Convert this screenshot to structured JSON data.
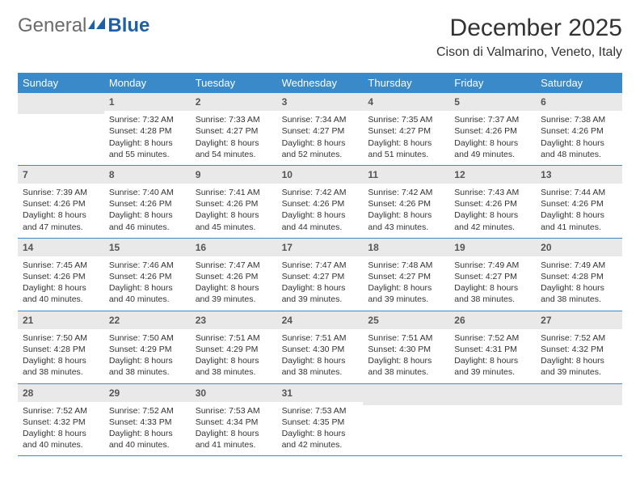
{
  "brand": {
    "general": "General",
    "blue": "Blue"
  },
  "title": "December 2025",
  "location": "Cison di Valmarino, Veneto, Italy",
  "colors": {
    "header_bg": "#3a8ac9",
    "header_fg": "#ffffff",
    "daynum_bg": "#e9e9e9",
    "week_border": "#3a8ac9",
    "logo_general": "#6b6b6b",
    "logo_blue": "#1f5fa8"
  },
  "fonts": {
    "body_pt": 10.5,
    "dayname_pt": 13,
    "title_pt": 30,
    "location_pt": 16
  },
  "daynames": [
    "Sunday",
    "Monday",
    "Tuesday",
    "Wednesday",
    "Thursday",
    "Friday",
    "Saturday"
  ],
  "weeks": [
    [
      {
        "n": "",
        "sunrise": "",
        "sunset": "",
        "daylight": ""
      },
      {
        "n": "1",
        "sunrise": "Sunrise: 7:32 AM",
        "sunset": "Sunset: 4:28 PM",
        "daylight": "Daylight: 8 hours and 55 minutes."
      },
      {
        "n": "2",
        "sunrise": "Sunrise: 7:33 AM",
        "sunset": "Sunset: 4:27 PM",
        "daylight": "Daylight: 8 hours and 54 minutes."
      },
      {
        "n": "3",
        "sunrise": "Sunrise: 7:34 AM",
        "sunset": "Sunset: 4:27 PM",
        "daylight": "Daylight: 8 hours and 52 minutes."
      },
      {
        "n": "4",
        "sunrise": "Sunrise: 7:35 AM",
        "sunset": "Sunset: 4:27 PM",
        "daylight": "Daylight: 8 hours and 51 minutes."
      },
      {
        "n": "5",
        "sunrise": "Sunrise: 7:37 AM",
        "sunset": "Sunset: 4:26 PM",
        "daylight": "Daylight: 8 hours and 49 minutes."
      },
      {
        "n": "6",
        "sunrise": "Sunrise: 7:38 AM",
        "sunset": "Sunset: 4:26 PM",
        "daylight": "Daylight: 8 hours and 48 minutes."
      }
    ],
    [
      {
        "n": "7",
        "sunrise": "Sunrise: 7:39 AM",
        "sunset": "Sunset: 4:26 PM",
        "daylight": "Daylight: 8 hours and 47 minutes."
      },
      {
        "n": "8",
        "sunrise": "Sunrise: 7:40 AM",
        "sunset": "Sunset: 4:26 PM",
        "daylight": "Daylight: 8 hours and 46 minutes."
      },
      {
        "n": "9",
        "sunrise": "Sunrise: 7:41 AM",
        "sunset": "Sunset: 4:26 PM",
        "daylight": "Daylight: 8 hours and 45 minutes."
      },
      {
        "n": "10",
        "sunrise": "Sunrise: 7:42 AM",
        "sunset": "Sunset: 4:26 PM",
        "daylight": "Daylight: 8 hours and 44 minutes."
      },
      {
        "n": "11",
        "sunrise": "Sunrise: 7:42 AM",
        "sunset": "Sunset: 4:26 PM",
        "daylight": "Daylight: 8 hours and 43 minutes."
      },
      {
        "n": "12",
        "sunrise": "Sunrise: 7:43 AM",
        "sunset": "Sunset: 4:26 PM",
        "daylight": "Daylight: 8 hours and 42 minutes."
      },
      {
        "n": "13",
        "sunrise": "Sunrise: 7:44 AM",
        "sunset": "Sunset: 4:26 PM",
        "daylight": "Daylight: 8 hours and 41 minutes."
      }
    ],
    [
      {
        "n": "14",
        "sunrise": "Sunrise: 7:45 AM",
        "sunset": "Sunset: 4:26 PM",
        "daylight": "Daylight: 8 hours and 40 minutes."
      },
      {
        "n": "15",
        "sunrise": "Sunrise: 7:46 AM",
        "sunset": "Sunset: 4:26 PM",
        "daylight": "Daylight: 8 hours and 40 minutes."
      },
      {
        "n": "16",
        "sunrise": "Sunrise: 7:47 AM",
        "sunset": "Sunset: 4:26 PM",
        "daylight": "Daylight: 8 hours and 39 minutes."
      },
      {
        "n": "17",
        "sunrise": "Sunrise: 7:47 AM",
        "sunset": "Sunset: 4:27 PM",
        "daylight": "Daylight: 8 hours and 39 minutes."
      },
      {
        "n": "18",
        "sunrise": "Sunrise: 7:48 AM",
        "sunset": "Sunset: 4:27 PM",
        "daylight": "Daylight: 8 hours and 39 minutes."
      },
      {
        "n": "19",
        "sunrise": "Sunrise: 7:49 AM",
        "sunset": "Sunset: 4:27 PM",
        "daylight": "Daylight: 8 hours and 38 minutes."
      },
      {
        "n": "20",
        "sunrise": "Sunrise: 7:49 AM",
        "sunset": "Sunset: 4:28 PM",
        "daylight": "Daylight: 8 hours and 38 minutes."
      }
    ],
    [
      {
        "n": "21",
        "sunrise": "Sunrise: 7:50 AM",
        "sunset": "Sunset: 4:28 PM",
        "daylight": "Daylight: 8 hours and 38 minutes."
      },
      {
        "n": "22",
        "sunrise": "Sunrise: 7:50 AM",
        "sunset": "Sunset: 4:29 PM",
        "daylight": "Daylight: 8 hours and 38 minutes."
      },
      {
        "n": "23",
        "sunrise": "Sunrise: 7:51 AM",
        "sunset": "Sunset: 4:29 PM",
        "daylight": "Daylight: 8 hours and 38 minutes."
      },
      {
        "n": "24",
        "sunrise": "Sunrise: 7:51 AM",
        "sunset": "Sunset: 4:30 PM",
        "daylight": "Daylight: 8 hours and 38 minutes."
      },
      {
        "n": "25",
        "sunrise": "Sunrise: 7:51 AM",
        "sunset": "Sunset: 4:30 PM",
        "daylight": "Daylight: 8 hours and 38 minutes."
      },
      {
        "n": "26",
        "sunrise": "Sunrise: 7:52 AM",
        "sunset": "Sunset: 4:31 PM",
        "daylight": "Daylight: 8 hours and 39 minutes."
      },
      {
        "n": "27",
        "sunrise": "Sunrise: 7:52 AM",
        "sunset": "Sunset: 4:32 PM",
        "daylight": "Daylight: 8 hours and 39 minutes."
      }
    ],
    [
      {
        "n": "28",
        "sunrise": "Sunrise: 7:52 AM",
        "sunset": "Sunset: 4:32 PM",
        "daylight": "Daylight: 8 hours and 40 minutes."
      },
      {
        "n": "29",
        "sunrise": "Sunrise: 7:52 AM",
        "sunset": "Sunset: 4:33 PM",
        "daylight": "Daylight: 8 hours and 40 minutes."
      },
      {
        "n": "30",
        "sunrise": "Sunrise: 7:53 AM",
        "sunset": "Sunset: 4:34 PM",
        "daylight": "Daylight: 8 hours and 41 minutes."
      },
      {
        "n": "31",
        "sunrise": "Sunrise: 7:53 AM",
        "sunset": "Sunset: 4:35 PM",
        "daylight": "Daylight: 8 hours and 42 minutes."
      },
      {
        "n": "",
        "sunrise": "",
        "sunset": "",
        "daylight": ""
      },
      {
        "n": "",
        "sunrise": "",
        "sunset": "",
        "daylight": ""
      },
      {
        "n": "",
        "sunrise": "",
        "sunset": "",
        "daylight": ""
      }
    ]
  ]
}
